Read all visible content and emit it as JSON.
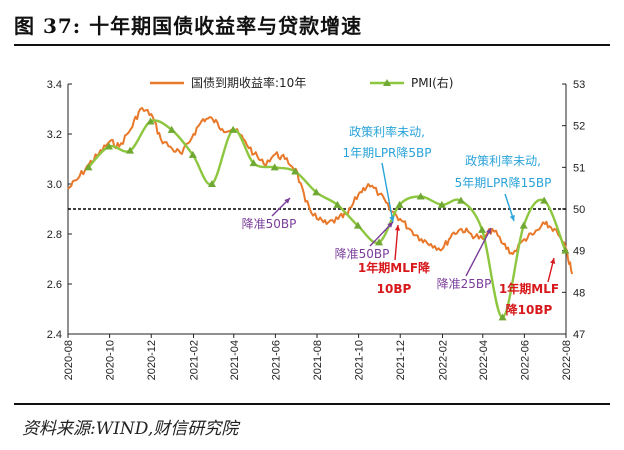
{
  "figure": {
    "title": "图 37:  十年期国债收益率与贷款增速",
    "source": "资料来源:WIND,财信研究院"
  },
  "chart_data": {
    "type": "line",
    "title": "",
    "x_tick_labels": [
      "2020-08",
      "2020-10",
      "2020-12",
      "2021-02",
      "2021-04",
      "2021-06",
      "2021-08",
      "2021-10",
      "2021-12",
      "2022-02",
      "2022-04",
      "2022-06",
      "2022-08"
    ],
    "y_left": {
      "ylim": [
        2.4,
        3.4
      ],
      "ticks": [
        "2.4",
        "2.6",
        "2.8",
        "3.0",
        "3.2",
        "3.4"
      ]
    },
    "y_right": {
      "ylim": [
        47,
        53
      ],
      "ticks": [
        "47",
        "48",
        "49",
        "50",
        "51",
        "52",
        "53"
      ]
    },
    "reference_line": {
      "axis": "right",
      "value": 50,
      "style": "dashed"
    },
    "legend": {
      "placement": "top-center"
    },
    "series": [
      {
        "name": "国债到期收益率:10年",
        "axis": "left",
        "color": "#E8782A",
        "x": [
          "2020-08-01",
          "2020-08-15",
          "2020-09-01",
          "2020-09-15",
          "2020-10-01",
          "2020-10-15",
          "2020-11-01",
          "2020-11-15",
          "2020-12-01",
          "2020-12-15",
          "2021-01-01",
          "2021-01-15",
          "2021-02-01",
          "2021-02-15",
          "2021-03-01",
          "2021-03-15",
          "2021-04-01",
          "2021-04-15",
          "2021-05-01",
          "2021-05-15",
          "2021-06-01",
          "2021-06-15",
          "2021-07-01",
          "2021-07-15",
          "2021-08-01",
          "2021-08-15",
          "2021-09-01",
          "2021-09-15",
          "2021-10-01",
          "2021-10-15",
          "2021-11-01",
          "2021-11-15",
          "2021-12-01",
          "2021-12-15",
          "2022-01-01",
          "2022-01-15",
          "2022-02-01",
          "2022-02-15",
          "2022-03-01",
          "2022-03-15",
          "2022-04-01",
          "2022-04-15",
          "2022-05-01",
          "2022-05-15",
          "2022-06-01",
          "2022-06-15",
          "2022-07-01",
          "2022-07-15",
          "2022-08-01",
          "2022-08-10"
        ],
        "values": [
          2.98,
          3.02,
          3.08,
          3.12,
          3.17,
          3.15,
          3.22,
          3.3,
          3.28,
          3.18,
          3.14,
          3.12,
          3.2,
          3.26,
          3.26,
          3.22,
          3.22,
          3.18,
          3.12,
          3.08,
          3.12,
          3.1,
          3.06,
          2.93,
          2.86,
          2.84,
          2.86,
          2.88,
          2.96,
          3.0,
          2.96,
          2.9,
          2.86,
          2.82,
          2.78,
          2.76,
          2.74,
          2.8,
          2.82,
          2.8,
          2.78,
          2.82,
          2.76,
          2.72,
          2.78,
          2.8,
          2.84,
          2.82,
          2.74,
          2.64
        ]
      },
      {
        "name": "PMI(右)",
        "axis": "right",
        "color": "#8DC63F",
        "x": [
          "2020-08-31",
          "2020-09-30",
          "2020-10-31",
          "2020-11-30",
          "2020-12-31",
          "2021-01-31",
          "2021-02-28",
          "2021-03-31",
          "2021-04-30",
          "2021-05-31",
          "2021-06-30",
          "2021-07-31",
          "2021-08-31",
          "2021-09-30",
          "2021-10-31",
          "2021-11-30",
          "2021-12-31",
          "2022-01-31",
          "2022-02-28",
          "2022-03-31",
          "2022-04-30",
          "2022-05-31",
          "2022-06-30",
          "2022-07-31"
        ],
        "values": [
          51.0,
          51.5,
          51.4,
          52.1,
          51.9,
          51.3,
          50.6,
          51.9,
          51.1,
          51.0,
          50.9,
          50.4,
          50.1,
          49.6,
          49.2,
          50.1,
          50.3,
          50.1,
          50.2,
          49.5,
          47.4,
          49.6,
          50.2,
          49.0
        ]
      }
    ],
    "annotations": [
      {
        "text": "政策利率未动,",
        "color": "#29A3D9"
      },
      {
        "text": "1年期LPR降5BP",
        "color": "#29A3D9"
      },
      {
        "text": "政策利率未动,",
        "color": "#29A3D9"
      },
      {
        "text": "5年期LPR降15BP",
        "color": "#29A3D9"
      },
      {
        "text": "降准50BP",
        "color": "#7A3D9A"
      },
      {
        "text": "降准50BP",
        "color": "#7A3D9A"
      },
      {
        "text": "降准25BP",
        "color": "#7A3D9A"
      },
      {
        "text": "1年期MLF降",
        "color": "#D7191C"
      },
      {
        "text": "10BP",
        "color": "#D7191C"
      },
      {
        "text": "1年期MLF",
        "color": "#D7191C"
      },
      {
        "text": "降10BP",
        "color": "#D7191C"
      }
    ]
  }
}
